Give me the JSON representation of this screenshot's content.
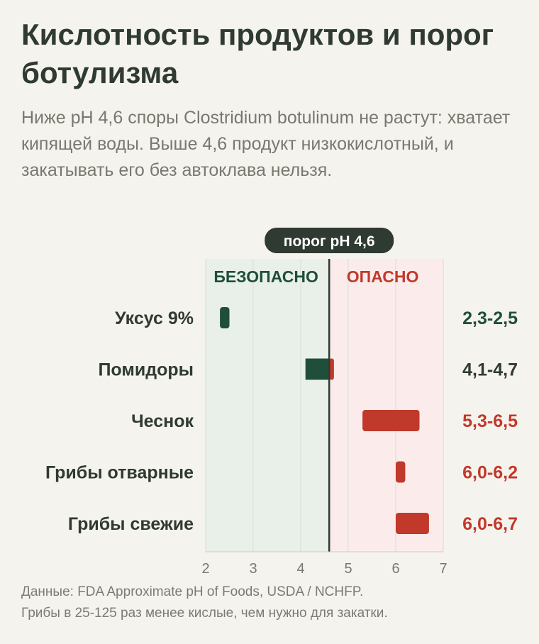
{
  "title": "Кислотность продуктов и порог ботулизма",
  "subtitle": "Ниже pH 4,6 споры Clostridium botulinum не растут: хватает кипящей воды. Выше 4,6 продукт низкокислотный, и закатывать его без автоклава нельзя.",
  "threshold_label": "порог pH 4,6",
  "zones": {
    "safe": "БЕЗОПАСНО",
    "danger": "ОПАСНО"
  },
  "colors": {
    "safe": "#1f4e3a",
    "danger": "#c0392b",
    "neutral": "#2f3a32",
    "safe_zone": "#e9f0ea",
    "danger_zone": "#fbeceb"
  },
  "chart_data": {
    "type": "bar",
    "subtype": "floating-range",
    "threshold": 4.6,
    "xlim": [
      2,
      7
    ],
    "xticks": [
      "2",
      "3",
      "4",
      "5",
      "6",
      "7"
    ],
    "grid": true,
    "categories": [
      "Уксус 9%",
      "Помидоры",
      "Чеснок",
      "Грибы отварные",
      "Грибы свежие"
    ],
    "ranges": [
      [
        2.3,
        2.5
      ],
      [
        4.1,
        4.7
      ],
      [
        5.3,
        6.5
      ],
      [
        6.0,
        6.2
      ],
      [
        6.0,
        6.7
      ]
    ],
    "range_labels": [
      "2,3-2,5",
      "4,1-4,7",
      "5,3-6,5",
      "6,0-6,2",
      "6,0-6,7"
    ]
  },
  "footnote": [
    "Данные: FDA Approximate pH of Foods, USDA / NCHFP.",
    "Грибы в 25-125 раз менее кислые, чем нужно для закатки."
  ]
}
